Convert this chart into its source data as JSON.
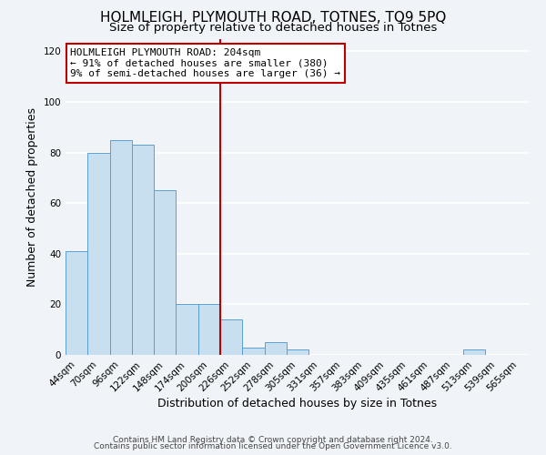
{
  "title": "HOLMLEIGH, PLYMOUTH ROAD, TOTNES, TQ9 5PQ",
  "subtitle": "Size of property relative to detached houses in Totnes",
  "xlabel": "Distribution of detached houses by size in Totnes",
  "ylabel": "Number of detached properties",
  "bar_labels": [
    "44sqm",
    "70sqm",
    "96sqm",
    "122sqm",
    "148sqm",
    "174sqm",
    "200sqm",
    "226sqm",
    "252sqm",
    "278sqm",
    "305sqm",
    "331sqm",
    "357sqm",
    "383sqm",
    "409sqm",
    "435sqm",
    "461sqm",
    "487sqm",
    "513sqm",
    "539sqm",
    "565sqm"
  ],
  "bar_values": [
    41,
    80,
    85,
    83,
    65,
    20,
    20,
    14,
    3,
    5,
    2,
    0,
    0,
    0,
    0,
    0,
    0,
    0,
    2,
    0,
    0
  ],
  "bar_color": "#c8dff0",
  "bar_edge_color": "#5a9fd4",
  "vline_x_idx": 6,
  "vline_color": "#bb0000",
  "annotation_title": "HOLMLEIGH PLYMOUTH ROAD: 204sqm",
  "annotation_line1": "← 91% of detached houses are smaller (380)",
  "annotation_line2": "9% of semi-detached houses are larger (36) →",
  "annotation_box_facecolor": "#ffffff",
  "annotation_box_edgecolor": "#bb0000",
  "footer1": "Contains HM Land Registry data © Crown copyright and database right 2024.",
  "footer2": "Contains public sector information licensed under the Open Government Licence v3.0.",
  "ylim": [
    0,
    125
  ],
  "yticks": [
    0,
    20,
    40,
    60,
    80,
    100,
    120
  ],
  "title_fontsize": 11,
  "subtitle_fontsize": 9.5,
  "axis_label_fontsize": 9,
  "tick_fontsize": 7.5,
  "annotation_fontsize": 8,
  "footer_fontsize": 6.5,
  "background_color": "#f0f4f8"
}
